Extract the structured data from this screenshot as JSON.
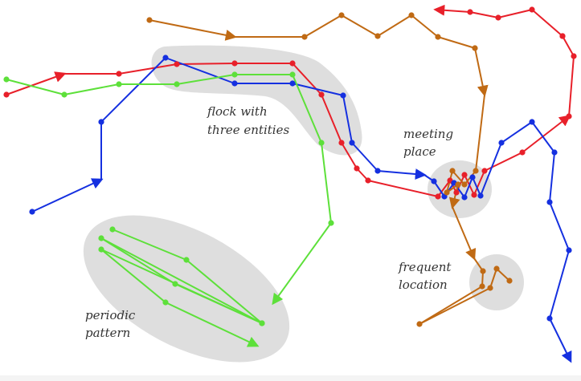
{
  "colors": {
    "red": "#e8202a",
    "blue": "#1530e0",
    "green": "#5de03a",
    "orange": "#c06a14",
    "region": "#dedede",
    "text": "#333333"
  },
  "labels": {
    "flock_line1": "flock with",
    "flock_line2": "three entities",
    "meeting_line1": "meeting",
    "meeting_line2": "place",
    "frequent_line1": "frequent",
    "frequent_line2": "location",
    "periodic_line1": "periodic",
    "periodic_line2": "pattern"
  },
  "trajectories": [
    {
      "id": "red",
      "color_key": "red",
      "points": [
        [
          8,
          118
        ],
        [
          80,
          92
        ],
        [
          148,
          92
        ],
        [
          220,
          80
        ],
        [
          292,
          79
        ],
        [
          364,
          79
        ],
        [
          400,
          118
        ],
        [
          425,
          178
        ],
        [
          444,
          210
        ],
        [
          458,
          225
        ],
        [
          545,
          245
        ],
        [
          560,
          225
        ],
        [
          568,
          240
        ],
        [
          578,
          218
        ],
        [
          590,
          243
        ],
        [
          603,
          213
        ],
        [
          650,
          190
        ],
        [
          708,
          145
        ]
      ],
      "arrows": [
        [
          1
        ],
        [
          17
        ]
      ]
    },
    {
      "id": "red-top",
      "color_key": "red",
      "points": [
        [
          700,
          45
        ],
        [
          662,
          12
        ],
        [
          620,
          22
        ],
        [
          585,
          15
        ],
        [
          542,
          12
        ]
      ],
      "arrows": [
        [
          4
        ]
      ]
    },
    {
      "id": "red-join",
      "color_key": "red",
      "points": [
        [
          708,
          145
        ],
        [
          714,
          70
        ],
        [
          700,
          45
        ]
      ],
      "arrows": []
    },
    {
      "id": "blue",
      "color_key": "blue",
      "points": [
        [
          40,
          264
        ],
        [
          126,
          224
        ],
        [
          126,
          152
        ],
        [
          206,
          72
        ],
        [
          292,
          104
        ],
        [
          364,
          104
        ],
        [
          427,
          119
        ],
        [
          438,
          178
        ],
        [
          470,
          213
        ],
        [
          528,
          218
        ],
        [
          540,
          226
        ],
        [
          553,
          245
        ],
        [
          565,
          228
        ],
        [
          578,
          246
        ],
        [
          588,
          221
        ],
        [
          598,
          244
        ],
        [
          624,
          178
        ],
        [
          662,
          152
        ],
        [
          690,
          190
        ],
        [
          684,
          252
        ],
        [
          708,
          312
        ],
        [
          684,
          397
        ],
        [
          710,
          450
        ]
      ],
      "arrows": [
        [
          1
        ],
        [
          9
        ],
        [
          22
        ]
      ]
    },
    {
      "id": "green",
      "color_key": "green",
      "points": [
        [
          8,
          99
        ],
        [
          80,
          118
        ],
        [
          148,
          105
        ],
        [
          220,
          105
        ],
        [
          292,
          93
        ],
        [
          364,
          93
        ],
        [
          400,
          178
        ],
        [
          412,
          278
        ],
        [
          340,
          378
        ]
      ],
      "arrows": [
        [
          8
        ]
      ]
    },
    {
      "id": "green-periodic",
      "color_key": "green",
      "points": [
        [
          140,
          286
        ],
        [
          232,
          324
        ],
        [
          326,
          403
        ],
        [
          126,
          297
        ],
        [
          218,
          354
        ],
        [
          326,
          403
        ],
        [
          126,
          311
        ],
        [
          206,
          377
        ],
        [
          320,
          431
        ]
      ],
      "arrows": [
        [
          8
        ]
      ]
    },
    {
      "id": "orange",
      "color_key": "orange",
      "points": [
        [
          186,
          25
        ],
        [
          292,
          46
        ],
        [
          379,
          46
        ],
        [
          425,
          19
        ],
        [
          470,
          45
        ],
        [
          512,
          19
        ],
        [
          545,
          46
        ],
        [
          591,
          60
        ],
        [
          603,
          118
        ],
        [
          592,
          213
        ],
        [
          578,
          230
        ],
        [
          563,
          213
        ],
        [
          556,
          240
        ],
        [
          570,
          230
        ],
        [
          563,
          258
        ],
        [
          590,
          322
        ],
        [
          601,
          338
        ],
        [
          600,
          357
        ],
        [
          522,
          404
        ],
        [
          610,
          359
        ],
        [
          618,
          335
        ],
        [
          634,
          350
        ]
      ],
      "arrows": [
        [
          1
        ],
        [
          8
        ],
        [
          14
        ],
        [
          15
        ]
      ]
    }
  ]
}
